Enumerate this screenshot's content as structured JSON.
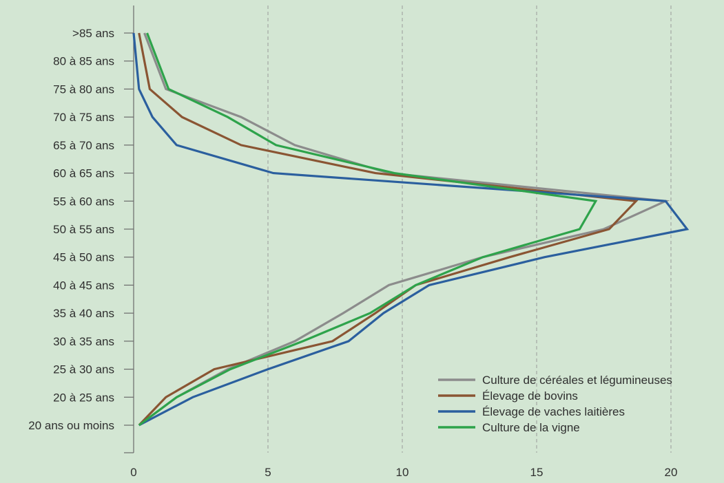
{
  "chart_data": {
    "type": "line",
    "title": "",
    "xlabel": "",
    "ylabel": "",
    "xlim": [
      0,
      20
    ],
    "x_ticks": [
      "0",
      "5",
      "10",
      "15",
      "20"
    ],
    "categories": [
      "20 ans ou moins",
      "20 à 25 ans",
      "25 à 30 ans",
      "30 à 35 ans",
      "35 à 40 ans",
      "40 à 45 ans",
      "45 à 50 ans",
      "50 à 55 ans",
      "55 à 60 ans",
      "60 à 65 ans",
      "65 à 70 ans",
      "70 à 75 ans",
      "75 à 80 ans",
      "80 à 85 ans",
      ">85 ans"
    ],
    "grid": "vertical dashed lines at 5, 10, 15, 20",
    "legend_position": "bottom-right",
    "series": [
      {
        "name": "Culture de céréales et légumineuses",
        "color": "#8c8c8c",
        "values": [
          0.2,
          1.6,
          3.5,
          6.0,
          7.8,
          9.5,
          13.0,
          17.5,
          19.8,
          9.5,
          6.0,
          4.0,
          1.2,
          0.8,
          0.4
        ]
      },
      {
        "name": "Élevage de bovins",
        "color": "#8a5533",
        "values": [
          0.2,
          1.2,
          3.0,
          7.4,
          9.0,
          10.5,
          14.0,
          17.7,
          18.7,
          9.0,
          4.0,
          1.8,
          0.6,
          0.4,
          0.2
        ]
      },
      {
        "name": "Élevage de vaches laitières",
        "color": "#2b5f9e",
        "values": [
          0.2,
          2.2,
          5.0,
          8.0,
          9.3,
          11.0,
          15.3,
          20.6,
          19.8,
          5.2,
          1.6,
          0.7,
          0.2,
          0.1,
          0.0
        ]
      },
      {
        "name": "Culture de la vigne",
        "color": "#2ea34b",
        "values": [
          0.2,
          1.6,
          3.6,
          6.3,
          8.8,
          10.5,
          13.0,
          16.6,
          17.2,
          9.7,
          5.3,
          3.5,
          1.3,
          0.9,
          0.5
        ]
      }
    ]
  }
}
